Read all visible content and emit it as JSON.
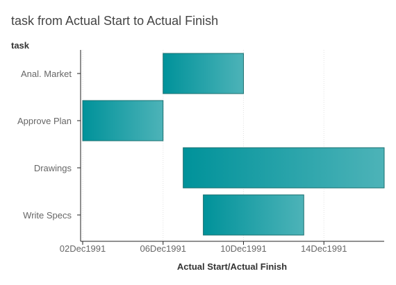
{
  "chart_data": {
    "type": "gantt",
    "title": "task from Actual Start to Actual Finish",
    "ylabel": "task",
    "xlabel": "Actual Start/Actual Finish",
    "tasks": [
      {
        "name": "Anal. Market",
        "start": "1991-12-06",
        "finish": "1991-12-10"
      },
      {
        "name": "Approve Plan",
        "start": "1991-12-02",
        "finish": "1991-12-06"
      },
      {
        "name": "Drawings",
        "start": "1991-12-07",
        "finish": "1991-12-17"
      },
      {
        "name": "Write Specs",
        "start": "1991-12-08",
        "finish": "1991-12-13"
      }
    ],
    "x_ticks": [
      {
        "date": "1991-12-02",
        "label": "02Dec1991"
      },
      {
        "date": "1991-12-06",
        "label": "06Dec1991"
      },
      {
        "date": "1991-12-10",
        "label": "10Dec1991"
      },
      {
        "date": "1991-12-14",
        "label": "14Dec1991"
      }
    ],
    "xlim": [
      "1991-12-02",
      "1991-12-17"
    ],
    "grid": "vertical",
    "colors": {
      "bar_start": "#00929a",
      "bar_end": "#4db3b8",
      "bar_border": "#1a6f6f"
    }
  }
}
